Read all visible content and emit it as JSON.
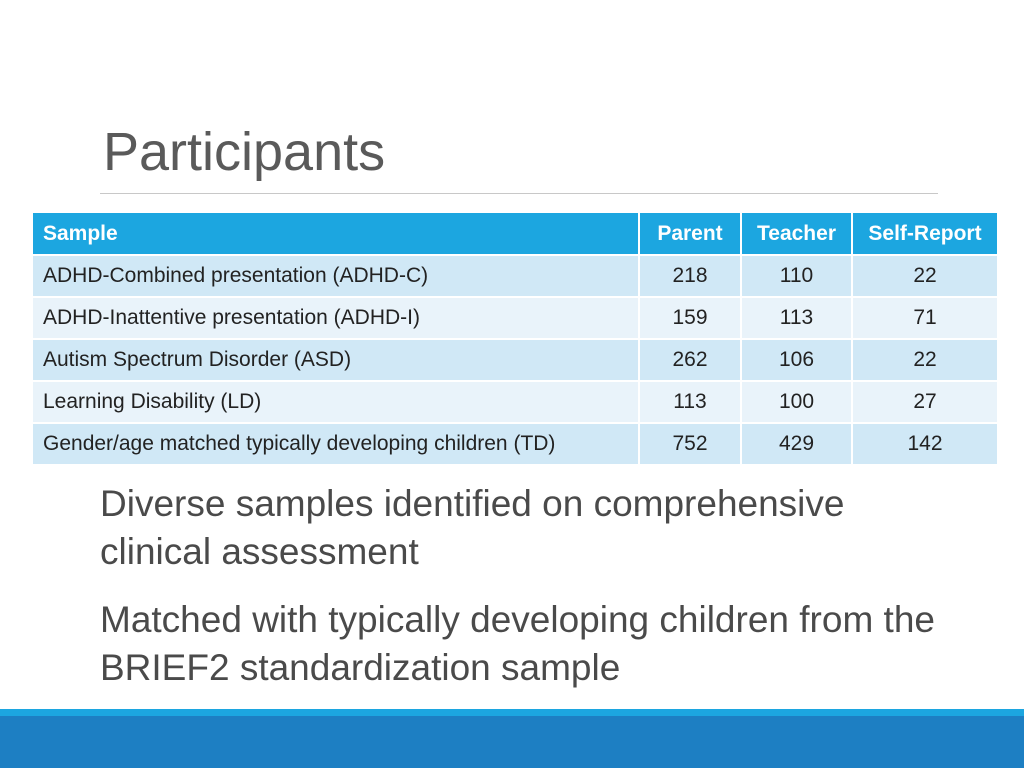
{
  "slide": {
    "title": "Participants",
    "table": {
      "headers": [
        "Sample",
        "Parent",
        "Teacher",
        "Self-Report"
      ],
      "rows": [
        [
          "ADHD-Combined presentation (ADHD-C)",
          "218",
          "110",
          "22"
        ],
        [
          "ADHD-Inattentive presentation (ADHD-I)",
          "159",
          "113",
          "71"
        ],
        [
          "Autism Spectrum Disorder (ASD)",
          "262",
          "106",
          "22"
        ],
        [
          "Learning Disability (LD)",
          "113",
          "100",
          "27"
        ],
        [
          "Gender/age matched typically developing children (TD)",
          "752",
          "429",
          "142"
        ]
      ]
    },
    "bullets": [
      "Diverse samples identified on comprehensive clinical assessment",
      "Matched with typically developing children from the BRIEF2 standardization sample"
    ]
  },
  "colors": {
    "header_bg": "#1ca6e0",
    "row_dark": "#d0e8f6",
    "row_light": "#e9f3fa",
    "footer": "#1d7fc3"
  }
}
